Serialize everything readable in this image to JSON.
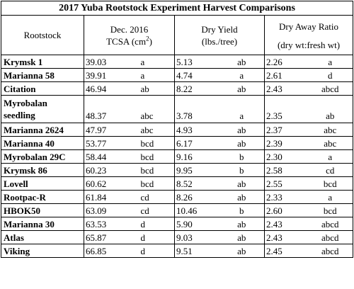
{
  "title": "2017 Yuba  Rootstock Experiment  Harvest Comparisons",
  "headers": {
    "rootstock": "Rootstock",
    "tcsa_line1": "Dec. 2016",
    "tcsa_line2_prefix": "TCSA (cm",
    "tcsa_sup": "2",
    "tcsa_line2_suffix": ")",
    "yield_line1": "Dry Yield",
    "yield_line2": "(lbs./tree)",
    "ratio_line1": "Dry Away Ratio",
    "ratio_line2": "(dry wt:fresh  wt)"
  },
  "rows": [
    {
      "rootstock": "Krymsk 1",
      "tcsa": "39.03",
      "tcsa_grp": "a",
      "yield": "5.13",
      "yield_grp": "ab",
      "ratio": "2.26",
      "ratio_grp": "a"
    },
    {
      "rootstock": "Marianna 58",
      "tcsa": "39.91",
      "tcsa_grp": "a",
      "yield": "4.74",
      "yield_grp": "a",
      "ratio": "2.61",
      "ratio_grp": "d"
    },
    {
      "rootstock": "Citation",
      "tcsa": "46.94",
      "tcsa_grp": "ab",
      "yield": "8.22",
      "yield_grp": "ab",
      "ratio": "2.43",
      "ratio_grp": "abcd"
    },
    {
      "rootstock_line1": "Myrobalan",
      "rootstock_line2": "seedling",
      "tcsa": "48.37",
      "tcsa_grp": "abc",
      "yield": "3.78",
      "yield_grp": "a",
      "ratio": "2.35",
      "ratio_grp": "ab"
    },
    {
      "rootstock": "Marianna 2624",
      "tcsa": "47.97",
      "tcsa_grp": "abc",
      "yield": "4.93",
      "yield_grp": "ab",
      "ratio": "2.37",
      "ratio_grp": "abc"
    },
    {
      "rootstock": "Marianna 40",
      "tcsa": "53.77",
      "tcsa_grp": "bcd",
      "yield": "6.17",
      "yield_grp": "ab",
      "ratio": "2.39",
      "ratio_grp": "abc"
    },
    {
      "rootstock": "Myrobalan 29C",
      "tcsa": "58.44",
      "tcsa_grp": "bcd",
      "yield": "9.16",
      "yield_grp": "b",
      "ratio": "2.30",
      "ratio_grp": "a"
    },
    {
      "rootstock": "Krymsk 86",
      "tcsa": "60.23",
      "tcsa_grp": "bcd",
      "yield": "9.95",
      "yield_grp": "b",
      "ratio": "2.58",
      "ratio_grp": "cd"
    },
    {
      "rootstock": "Lovell",
      "tcsa": "60.62",
      "tcsa_grp": "bcd",
      "yield": "8.52",
      "yield_grp": "ab",
      "ratio": "2.55",
      "ratio_grp": "bcd"
    },
    {
      "rootstock": "Rootpac-R",
      "tcsa": "61.84",
      "tcsa_grp": "cd",
      "yield": "8.26",
      "yield_grp": "ab",
      "ratio": "2.33",
      "ratio_grp": "a"
    },
    {
      "rootstock": "HBOK50",
      "tcsa": "63.09",
      "tcsa_grp": "cd",
      "yield": "10.46",
      "yield_grp": "b",
      "ratio": "2.60",
      "ratio_grp": "bcd"
    },
    {
      "rootstock": "Marianna 30",
      "tcsa": "63.53",
      "tcsa_grp": "d",
      "yield": "5.90",
      "yield_grp": "ab",
      "ratio": "2.43",
      "ratio_grp": "abcd"
    },
    {
      "rootstock": "Atlas",
      "tcsa": "65.87",
      "tcsa_grp": "d",
      "yield": "9.03",
      "yield_grp": "ab",
      "ratio": "2.43",
      "ratio_grp": "abcd"
    },
    {
      "rootstock": "Viking",
      "tcsa": "66.85",
      "tcsa_grp": "d",
      "yield": "9.51",
      "yield_grp": "ab",
      "ratio": "2.45",
      "ratio_grp": "abcd"
    }
  ]
}
